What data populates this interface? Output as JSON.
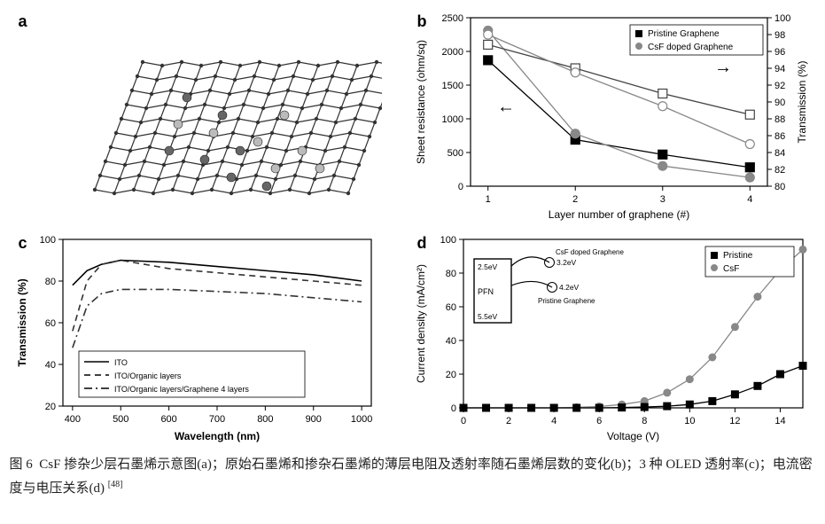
{
  "caption": {
    "prefix": "图 6",
    "text": "CsF 掺杂少层石墨烯示意图(a)；原始石墨烯和掺杂石墨烯的薄层电阻及透射率随石墨烯层数的变化(b)；3 种 OLED 透射率(c)；电流密度与电压关系(d)",
    "ref": "[48]"
  },
  "panel_labels": {
    "a": "a",
    "b": "b",
    "c": "c",
    "d": "d"
  },
  "panel_a": {
    "description": "CsF doped few-layer graphene schematic — 3D honeycomb lattice with dopant atoms",
    "lattice_color": "#333333",
    "atom_color_dark": "#666666",
    "atom_color_light": "#bbbbbb",
    "background_color": "#ffffff"
  },
  "panel_b": {
    "type": "line",
    "xlabel": "Layer number of graphene (#)",
    "ylabel_left": "Sheet resistance (ohm/sq)",
    "ylabel_right": "Transmission (%)",
    "xlim": [
      0.8,
      4.2
    ],
    "ylim_left": [
      0,
      2500
    ],
    "ytick_left_step": 500,
    "ylim_right": [
      80,
      100
    ],
    "ytick_right_step": 2,
    "xticks": [
      1,
      2,
      3,
      4
    ],
    "legend": {
      "items": [
        "Pristine Graphene",
        "CsF doped Graphene"
      ],
      "marker_fill": [
        "#000000",
        "#888888"
      ],
      "marker_open": [
        "□",
        "○"
      ]
    },
    "series": {
      "pristine_resistance": {
        "x": [
          1,
          2,
          3,
          4
        ],
        "y": [
          1870,
          690,
          470,
          280
        ],
        "marker": "square-filled",
        "color": "#000000"
      },
      "csf_resistance": {
        "x": [
          1,
          2,
          3,
          4
        ],
        "y": [
          2310,
          780,
          300,
          130
        ],
        "marker": "circle-filled",
        "color": "#888888"
      },
      "pristine_transmission": {
        "x": [
          1,
          2,
          3,
          4
        ],
        "y": [
          96.8,
          94.0,
          91.0,
          88.5
        ],
        "marker": "square-open",
        "color": "#444444"
      },
      "csf_transmission": {
        "x": [
          1,
          2,
          3,
          4
        ],
        "y": [
          98.0,
          93.5,
          89.5,
          85.0
        ],
        "marker": "circle-open",
        "color": "#888888"
      }
    },
    "axis_color": "#000000",
    "background_color": "#ffffff",
    "line_width": 1.3,
    "marker_size": 5,
    "font_size_axis": 11,
    "font_size_legend": 10
  },
  "panel_c": {
    "type": "line",
    "xlabel": "Wavelength (nm)",
    "ylabel": "Transmission (%)",
    "xlim": [
      380,
      1020
    ],
    "ylim": [
      20,
      100
    ],
    "xticks": [
      400,
      500,
      600,
      700,
      800,
      900,
      1000
    ],
    "yticks": [
      20,
      40,
      60,
      80,
      100
    ],
    "legend": {
      "items": [
        "ITO",
        "ITO/Organic layers",
        "ITO/Organic layers/Graphene 4 layers"
      ],
      "styles": [
        "solid",
        "dash",
        "dashdot"
      ]
    },
    "series": {
      "ito": {
        "x": [
          400,
          430,
          460,
          500,
          600,
          700,
          800,
          900,
          1000
        ],
        "y": [
          78,
          85,
          88,
          90,
          89,
          87,
          85,
          83,
          80
        ],
        "style": "solid",
        "color": "#000000"
      },
      "ito_org": {
        "x": [
          400,
          430,
          460,
          500,
          600,
          700,
          800,
          900,
          1000
        ],
        "y": [
          56,
          80,
          88,
          90,
          86,
          84,
          82,
          80,
          78
        ],
        "style": "dash",
        "color": "#333333"
      },
      "ito_org_gr": {
        "x": [
          400,
          430,
          460,
          500,
          600,
          700,
          800,
          900,
          1000
        ],
        "y": [
          48,
          68,
          74,
          76,
          76,
          75,
          74,
          72,
          70
        ],
        "style": "dashdot",
        "color": "#333333"
      }
    },
    "axis_color": "#000000",
    "background_color": "#ffffff",
    "line_width": 1.6,
    "font_size_axis": 11,
    "font_size_legend": 9
  },
  "panel_d": {
    "type": "line",
    "xlabel": "Voltage (V)",
    "ylabel": "Current density (mA/cm²)",
    "xlim": [
      0,
      15
    ],
    "ylim": [
      0,
      100
    ],
    "xticks": [
      0,
      2,
      4,
      6,
      8,
      10,
      12,
      14
    ],
    "yticks": [
      0,
      20,
      40,
      60,
      80,
      100
    ],
    "legend": {
      "items": [
        "Pristine",
        "CsF"
      ],
      "markers": [
        "square-filled",
        "circle-filled"
      ],
      "colors": [
        "#000000",
        "#888888"
      ]
    },
    "series": {
      "pristine": {
        "x": [
          0,
          1,
          2,
          3,
          4,
          5,
          6,
          7,
          8,
          9,
          10,
          11,
          12,
          13,
          14,
          15
        ],
        "y": [
          0,
          0,
          0,
          0,
          0,
          0,
          0,
          0.2,
          0.5,
          1,
          2,
          4,
          8,
          13,
          20,
          25
        ],
        "marker": "square-filled",
        "color": "#000000"
      },
      "csf": {
        "x": [
          0,
          1,
          2,
          3,
          4,
          5,
          6,
          7,
          8,
          9,
          10,
          11,
          12,
          13,
          14,
          15
        ],
        "y": [
          0,
          0,
          0,
          0,
          0,
          0.3,
          0.8,
          2,
          4,
          9,
          17,
          30,
          48,
          66,
          82,
          94
        ],
        "marker": "circle-filled",
        "color": "#888888"
      }
    },
    "inset_diagram": {
      "label_csf": "CsF doped Graphene",
      "label_pristine": "Pristine Graphene",
      "level_top": "2.5eV",
      "level_mid1": "3.2eV",
      "level_mid2": "4.2eV",
      "level_bottom": "5.5eV",
      "material": "PFN",
      "box_color": "#000000"
    },
    "axis_color": "#000000",
    "background_color": "#ffffff",
    "line_width": 1.3,
    "marker_size": 4.5,
    "font_size_axis": 11,
    "font_size_legend": 10
  }
}
